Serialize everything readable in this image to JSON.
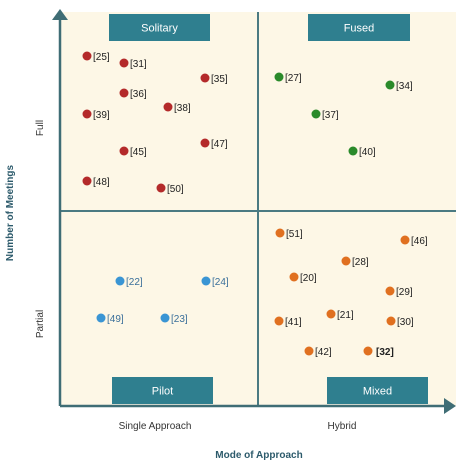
{
  "quadrants": {
    "solitary": "Solitary",
    "fused": "Fused",
    "pilot": "Pilot",
    "mixed": "Mixed"
  },
  "axes": {
    "x_title": "Mode of Approach",
    "y_title": "Number of Meetings",
    "x_categories": [
      "Single Approach",
      "Hybrid"
    ],
    "y_categories": [
      "Full",
      "Partial"
    ]
  },
  "colors": {
    "solitary": "#b42a2a",
    "fused": "#2a8a2a",
    "pilot": "#3a95d4",
    "mixed": "#e07020",
    "label_box": "#2f7f8f",
    "frame": "#3f6d75",
    "background": "#fdf7e6"
  },
  "points": {
    "solitary": [
      "[25]",
      "[31]",
      "[35]",
      "[36]",
      "[38]",
      "[39]",
      "[47]",
      "[45]",
      "[48]",
      "[50]"
    ],
    "fused": [
      "[27]",
      "[34]",
      "[37]",
      "[40]"
    ],
    "pilot": [
      "[22]",
      "[24]",
      "[49]",
      "[23]"
    ],
    "mixed": [
      "[51]",
      "[46]",
      "[28]",
      "[20]",
      "[29]",
      "[41]",
      "[21]",
      "[30]",
      "[42]",
      "[32]"
    ]
  }
}
